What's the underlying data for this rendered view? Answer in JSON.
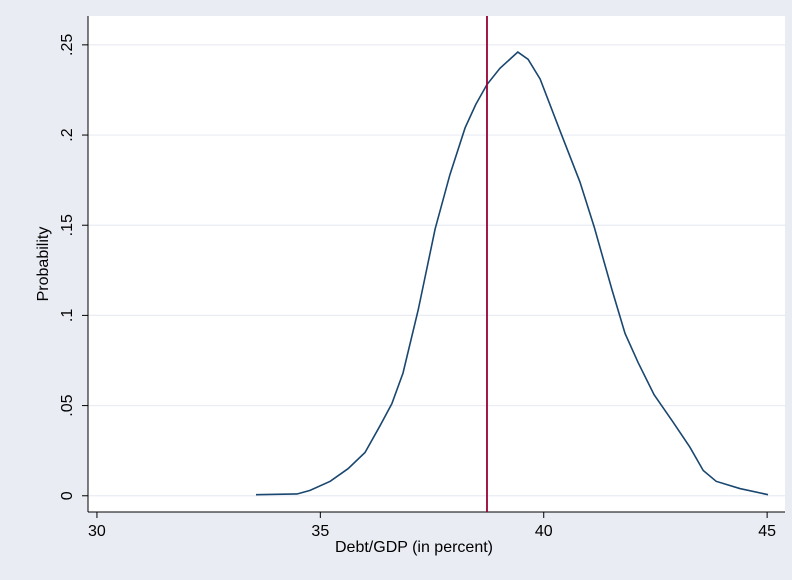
{
  "chart_data": {
    "type": "line",
    "xlabel": "Debt/GDP (in percent)",
    "ylabel": "Probability",
    "x": [
      33.56,
      34.48,
      34.77,
      35.22,
      35.62,
      36.0,
      36.34,
      36.6,
      36.85,
      37.19,
      37.57,
      37.9,
      38.24,
      38.48,
      38.73,
      39.02,
      39.42,
      39.65,
      39.92,
      40.37,
      40.81,
      41.13,
      41.53,
      41.82,
      42.11,
      42.47,
      42.89,
      43.27,
      43.57,
      43.86,
      44.39,
      45.02
    ],
    "series": [
      {
        "color": "#1a476f",
        "values": [
          0.0006,
          0.001,
          0.003,
          0.008,
          0.015,
          0.024,
          0.039,
          0.051,
          0.068,
          0.103,
          0.148,
          0.178,
          0.204,
          0.217,
          0.228,
          0.237,
          0.246,
          0.242,
          0.231,
          0.202,
          0.174,
          0.149,
          0.114,
          0.09,
          0.074,
          0.056,
          0.041,
          0.027,
          0.014,
          0.008,
          0.004,
          0.0006
        ]
      }
    ],
    "reference_line": {
      "x": 38.73,
      "color": "#990033"
    },
    "xlim": [
      29.8,
      45.4
    ],
    "xticks": [
      30,
      35,
      40,
      45
    ],
    "ylim": [
      -0.009,
      0.266
    ],
    "yticks": [
      0,
      {
        "value": 0.05,
        "label": ".05"
      },
      {
        "value": 0.1,
        "label": ".1"
      },
      {
        "value": 0.15,
        "label": ".15"
      },
      {
        "value": 0.2,
        "label": ".2"
      },
      {
        "value": 0.25,
        "label": ".25"
      }
    ],
    "grid": true
  }
}
